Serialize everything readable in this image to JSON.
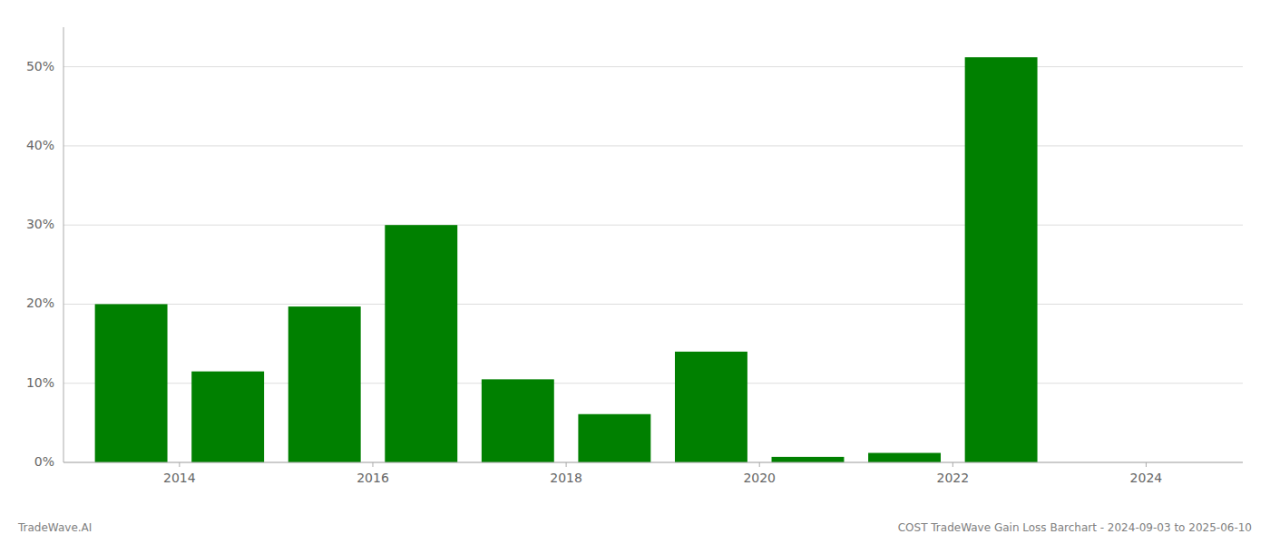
{
  "chart_data": {
    "type": "bar",
    "x": [
      2013.5,
      2014.5,
      2015.5,
      2016.5,
      2017.5,
      2018.5,
      2019.5,
      2020.5,
      2021.5,
      2022.5
    ],
    "values": [
      20.0,
      11.5,
      19.7,
      30.0,
      10.5,
      6.1,
      14.0,
      0.7,
      1.2,
      51.2
    ],
    "color": "#008000",
    "xlim": [
      2012.8,
      2025.0
    ],
    "xticks": [
      2014,
      2016,
      2018,
      2020,
      2022,
      2024
    ],
    "ylim": [
      0,
      55
    ],
    "yticks": [
      {
        "value": 0,
        "label": "0%"
      },
      {
        "value": 10,
        "label": "10%"
      },
      {
        "value": 20,
        "label": "20%"
      },
      {
        "value": 30,
        "label": "30%"
      },
      {
        "value": 40,
        "label": "40%"
      },
      {
        "value": 50,
        "label": "50%"
      }
    ],
    "grid": true,
    "annotations": [
      "TradeWave.AI",
      "COST TradeWave Gain Loss Barchart - 2024-09-03 to 2025-06-10"
    ]
  }
}
